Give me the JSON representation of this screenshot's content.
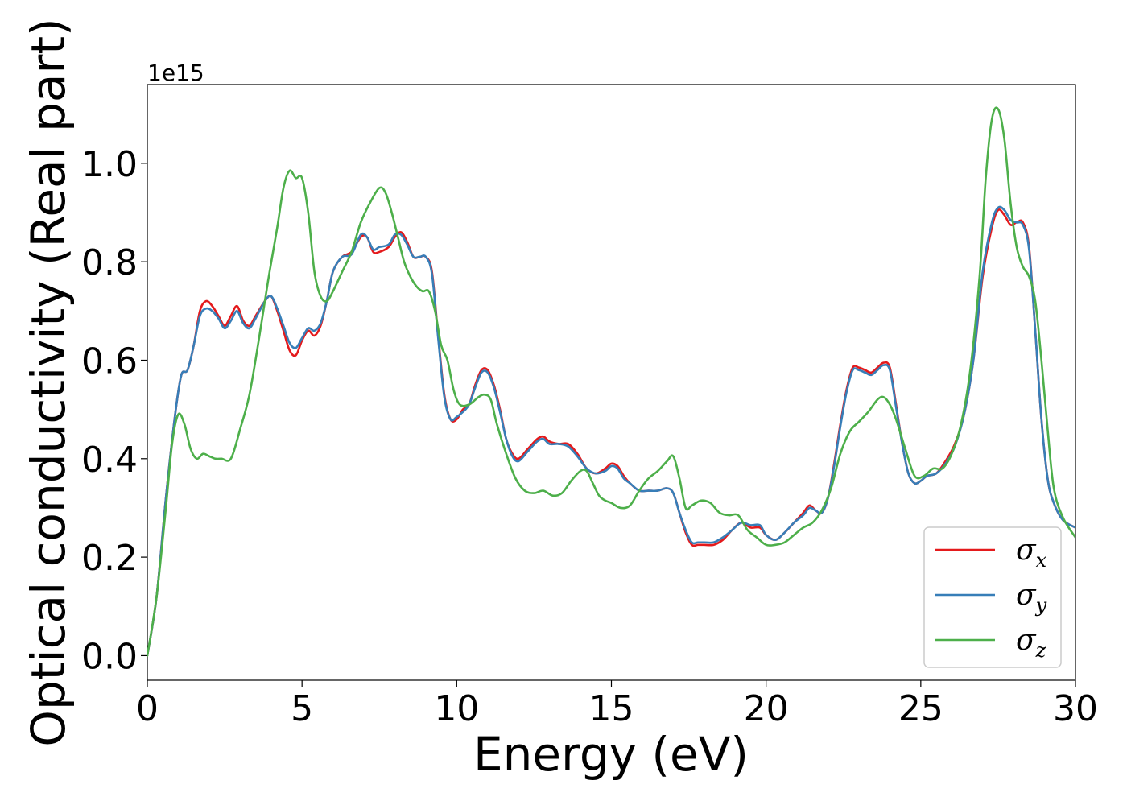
{
  "chart_data": {
    "type": "line",
    "xlabel": "Energy (eV)",
    "ylabel": "Optical conductivity (Real part)",
    "y_offset_text": "1e15",
    "xlim": [
      0,
      30
    ],
    "ylim": [
      -0.05,
      1.16
    ],
    "xticks": [
      0,
      5,
      10,
      15,
      20,
      25,
      30
    ],
    "xtick_labels": [
      "0",
      "5",
      "10",
      "15",
      "20",
      "25",
      "30"
    ],
    "yticks": [
      0.0,
      0.2,
      0.4,
      0.6,
      0.8,
      1.0
    ],
    "ytick_labels": [
      "0.0",
      "0.2",
      "0.4",
      "0.6",
      "0.8",
      "1.0"
    ],
    "grid": false,
    "legend_position": "lower-right",
    "series": [
      {
        "name": "σx",
        "symbol": "σ",
        "sub": "x",
        "color": "#e41a1c",
        "x": [
          0,
          0.3,
          0.6,
          0.9,
          1.1,
          1.3,
          1.5,
          1.7,
          1.9,
          2.1,
          2.3,
          2.5,
          2.7,
          2.9,
          3.1,
          3.3,
          3.5,
          3.8,
          4.0,
          4.2,
          4.4,
          4.6,
          4.8,
          5.0,
          5.2,
          5.4,
          5.6,
          5.8,
          6.0,
          6.3,
          6.6,
          6.9,
          7.1,
          7.3,
          7.5,
          7.8,
          8.0,
          8.2,
          8.4,
          8.6,
          8.8,
          9.0,
          9.2,
          9.4,
          9.6,
          9.8,
          10.0,
          10.2,
          10.4,
          10.6,
          10.8,
          11.0,
          11.2,
          11.4,
          11.6,
          11.8,
          12.0,
          12.3,
          12.6,
          12.8,
          13.0,
          13.3,
          13.6,
          13.9,
          14.2,
          14.5,
          14.8,
          15.0,
          15.2,
          15.4,
          15.6,
          15.9,
          16.2,
          16.5,
          16.8,
          17.0,
          17.2,
          17.4,
          17.6,
          17.8,
          18.0,
          18.3,
          18.6,
          18.9,
          19.2,
          19.5,
          19.8,
          20.0,
          20.3,
          20.6,
          20.9,
          21.2,
          21.4,
          21.6,
          21.8,
          22.0,
          22.2,
          22.4,
          22.6,
          22.8,
          23.0,
          23.2,
          23.4,
          23.6,
          23.8,
          24.0,
          24.2,
          24.4,
          24.6,
          24.8,
          25.0,
          25.2,
          25.5,
          25.8,
          26.1,
          26.4,
          26.7,
          27.0,
          27.3,
          27.5,
          27.7,
          27.9,
          28.1,
          28.3,
          28.5,
          28.7,
          28.9,
          29.1,
          29.3,
          29.6,
          30.0
        ],
        "y": [
          0,
          0.12,
          0.32,
          0.49,
          0.57,
          0.58,
          0.63,
          0.7,
          0.72,
          0.71,
          0.69,
          0.67,
          0.69,
          0.71,
          0.68,
          0.67,
          0.69,
          0.72,
          0.73,
          0.7,
          0.66,
          0.62,
          0.61,
          0.64,
          0.66,
          0.65,
          0.67,
          0.72,
          0.78,
          0.81,
          0.82,
          0.85,
          0.85,
          0.82,
          0.82,
          0.83,
          0.85,
          0.86,
          0.84,
          0.81,
          0.81,
          0.81,
          0.78,
          0.65,
          0.53,
          0.48,
          0.48,
          0.5,
          0.51,
          0.55,
          0.58,
          0.58,
          0.55,
          0.5,
          0.44,
          0.41,
          0.4,
          0.42,
          0.44,
          0.445,
          0.435,
          0.43,
          0.43,
          0.41,
          0.38,
          0.37,
          0.38,
          0.39,
          0.385,
          0.365,
          0.35,
          0.335,
          0.335,
          0.335,
          0.34,
          0.33,
          0.29,
          0.25,
          0.225,
          0.225,
          0.225,
          0.225,
          0.235,
          0.255,
          0.27,
          0.26,
          0.26,
          0.245,
          0.235,
          0.25,
          0.27,
          0.29,
          0.305,
          0.295,
          0.29,
          0.32,
          0.39,
          0.47,
          0.54,
          0.585,
          0.585,
          0.58,
          0.575,
          0.585,
          0.595,
          0.585,
          0.51,
          0.43,
          0.37,
          0.35,
          0.355,
          0.365,
          0.37,
          0.395,
          0.43,
          0.49,
          0.6,
          0.77,
          0.87,
          0.905,
          0.895,
          0.875,
          0.88,
          0.88,
          0.83,
          0.66,
          0.48,
          0.36,
          0.31,
          0.275,
          0.26
        ]
      },
      {
        "name": "σy",
        "symbol": "σ",
        "sub": "y",
        "color": "#377eb8",
        "x": [
          0,
          0.3,
          0.6,
          0.9,
          1.1,
          1.3,
          1.5,
          1.7,
          1.9,
          2.1,
          2.3,
          2.5,
          2.7,
          2.9,
          3.1,
          3.3,
          3.5,
          3.8,
          4.0,
          4.2,
          4.4,
          4.6,
          4.8,
          5.0,
          5.2,
          5.4,
          5.6,
          5.8,
          6.0,
          6.3,
          6.6,
          6.9,
          7.1,
          7.3,
          7.5,
          7.8,
          8.0,
          8.2,
          8.4,
          8.6,
          8.8,
          9.0,
          9.2,
          9.4,
          9.6,
          9.8,
          10.0,
          10.2,
          10.4,
          10.6,
          10.8,
          11.0,
          11.2,
          11.4,
          11.6,
          11.8,
          12.0,
          12.3,
          12.6,
          12.8,
          13.0,
          13.3,
          13.6,
          13.9,
          14.2,
          14.5,
          14.8,
          15.0,
          15.2,
          15.4,
          15.6,
          15.9,
          16.2,
          16.5,
          16.8,
          17.0,
          17.2,
          17.4,
          17.6,
          17.8,
          18.0,
          18.3,
          18.6,
          18.9,
          19.2,
          19.5,
          19.8,
          20.0,
          20.3,
          20.6,
          20.9,
          21.2,
          21.4,
          21.6,
          21.8,
          22.0,
          22.2,
          22.4,
          22.6,
          22.8,
          23.0,
          23.2,
          23.4,
          23.6,
          23.8,
          24.0,
          24.2,
          24.4,
          24.6,
          24.8,
          25.0,
          25.2,
          25.5,
          25.8,
          26.1,
          26.4,
          26.7,
          27.0,
          27.3,
          27.5,
          27.7,
          27.9,
          28.1,
          28.3,
          28.5,
          28.7,
          28.9,
          29.1,
          29.3,
          29.6,
          30.0
        ],
        "y": [
          0,
          0.12,
          0.32,
          0.49,
          0.57,
          0.58,
          0.63,
          0.69,
          0.705,
          0.7,
          0.685,
          0.665,
          0.68,
          0.7,
          0.675,
          0.665,
          0.685,
          0.72,
          0.73,
          0.705,
          0.67,
          0.635,
          0.625,
          0.645,
          0.665,
          0.66,
          0.675,
          0.72,
          0.78,
          0.81,
          0.815,
          0.855,
          0.85,
          0.825,
          0.83,
          0.835,
          0.855,
          0.855,
          0.835,
          0.81,
          0.81,
          0.81,
          0.775,
          0.645,
          0.525,
          0.48,
          0.485,
          0.495,
          0.51,
          0.545,
          0.575,
          0.575,
          0.545,
          0.495,
          0.44,
          0.405,
          0.395,
          0.415,
          0.435,
          0.44,
          0.43,
          0.43,
          0.425,
          0.405,
          0.38,
          0.37,
          0.375,
          0.385,
          0.38,
          0.36,
          0.35,
          0.335,
          0.335,
          0.335,
          0.34,
          0.33,
          0.29,
          0.255,
          0.23,
          0.23,
          0.23,
          0.23,
          0.24,
          0.255,
          0.27,
          0.265,
          0.265,
          0.245,
          0.235,
          0.25,
          0.27,
          0.285,
          0.3,
          0.295,
          0.29,
          0.32,
          0.385,
          0.465,
          0.535,
          0.58,
          0.58,
          0.575,
          0.57,
          0.58,
          0.59,
          0.58,
          0.505,
          0.43,
          0.37,
          0.35,
          0.355,
          0.365,
          0.37,
          0.39,
          0.425,
          0.49,
          0.6,
          0.78,
          0.88,
          0.91,
          0.905,
          0.885,
          0.88,
          0.875,
          0.825,
          0.66,
          0.48,
          0.36,
          0.31,
          0.275,
          0.26
        ]
      },
      {
        "name": "σz",
        "symbol": "σ",
        "sub": "z",
        "color": "#4daf4a",
        "x": [
          0,
          0.3,
          0.6,
          0.8,
          1.0,
          1.2,
          1.4,
          1.6,
          1.8,
          2.0,
          2.2,
          2.4,
          2.7,
          3.0,
          3.3,
          3.6,
          3.9,
          4.2,
          4.4,
          4.6,
          4.8,
          5.0,
          5.2,
          5.4,
          5.6,
          5.8,
          6.0,
          6.3,
          6.6,
          6.9,
          7.2,
          7.5,
          7.7,
          7.9,
          8.1,
          8.3,
          8.5,
          8.7,
          8.9,
          9.1,
          9.3,
          9.5,
          9.7,
          9.9,
          10.1,
          10.4,
          10.7,
          10.9,
          11.1,
          11.3,
          11.6,
          11.9,
          12.2,
          12.5,
          12.8,
          13.1,
          13.4,
          13.7,
          14.0,
          14.2,
          14.4,
          14.6,
          14.8,
          15.0,
          15.3,
          15.6,
          15.9,
          16.2,
          16.5,
          16.8,
          17.0,
          17.2,
          17.4,
          17.6,
          17.9,
          18.2,
          18.5,
          18.8,
          19.1,
          19.4,
          19.7,
          20.0,
          20.3,
          20.6,
          20.9,
          21.2,
          21.5,
          21.8,
          22.1,
          22.4,
          22.7,
          23.0,
          23.3,
          23.6,
          23.8,
          24.0,
          24.2,
          24.5,
          24.8,
          25.1,
          25.4,
          25.7,
          26.0,
          26.3,
          26.6,
          26.9,
          27.1,
          27.3,
          27.5,
          27.7,
          27.9,
          28.1,
          28.3,
          28.5,
          28.7,
          28.9,
          29.1,
          29.3,
          29.6,
          30.0
        ],
        "y": [
          0,
          0.12,
          0.3,
          0.43,
          0.49,
          0.47,
          0.42,
          0.4,
          0.41,
          0.405,
          0.4,
          0.4,
          0.4,
          0.46,
          0.53,
          0.64,
          0.76,
          0.87,
          0.95,
          0.985,
          0.97,
          0.97,
          0.9,
          0.78,
          0.73,
          0.72,
          0.74,
          0.78,
          0.82,
          0.88,
          0.92,
          0.95,
          0.94,
          0.9,
          0.85,
          0.8,
          0.77,
          0.75,
          0.74,
          0.74,
          0.7,
          0.63,
          0.6,
          0.54,
          0.51,
          0.51,
          0.525,
          0.53,
          0.52,
          0.47,
          0.41,
          0.36,
          0.335,
          0.33,
          0.335,
          0.325,
          0.33,
          0.355,
          0.375,
          0.375,
          0.35,
          0.325,
          0.315,
          0.31,
          0.3,
          0.305,
          0.335,
          0.36,
          0.375,
          0.395,
          0.405,
          0.36,
          0.3,
          0.305,
          0.315,
          0.31,
          0.29,
          0.285,
          0.285,
          0.255,
          0.24,
          0.225,
          0.225,
          0.23,
          0.245,
          0.26,
          0.27,
          0.295,
          0.34,
          0.41,
          0.455,
          0.475,
          0.495,
          0.52,
          0.525,
          0.51,
          0.48,
          0.42,
          0.365,
          0.365,
          0.38,
          0.38,
          0.41,
          0.47,
          0.58,
          0.77,
          0.97,
          1.09,
          1.11,
          1.05,
          0.92,
          0.83,
          0.79,
          0.77,
          0.72,
          0.6,
          0.46,
          0.34,
          0.28,
          0.24
        ]
      }
    ]
  }
}
